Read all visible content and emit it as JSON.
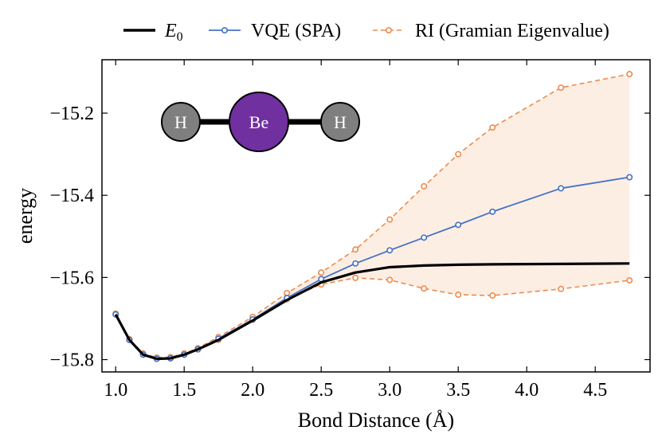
{
  "chart_data": {
    "type": "line",
    "title": "",
    "xlabel": "Bond Distance (Å)",
    "ylabel": "energy",
    "xlim": [
      0.9,
      4.9
    ],
    "ylim": [
      -15.83,
      -15.07
    ],
    "xticks": [
      1.0,
      1.5,
      2.0,
      2.5,
      3.0,
      3.5,
      4.0,
      4.5
    ],
    "xtick_labels": [
      "1.0",
      "1.5",
      "2.0",
      "2.5",
      "3.0",
      "3.5",
      "4.0",
      "4.5"
    ],
    "yticks": [
      -15.8,
      -15.6,
      -15.4,
      -15.2
    ],
    "ytick_labels": [
      "−15.8",
      "−15.6",
      "−15.4",
      "−15.2"
    ],
    "grid": false,
    "legend_position": "top",
    "x": [
      1.0,
      1.1,
      1.2,
      1.3,
      1.4,
      1.5,
      1.6,
      1.75,
      2.0,
      2.25,
      2.5,
      2.75,
      3.0,
      3.25,
      3.5,
      3.75,
      4.25,
      4.75
    ],
    "series": [
      {
        "name": "E",
        "name_subscript": "0",
        "color": "#000000",
        "style": "solid",
        "markers": false,
        "values": [
          -15.69,
          -15.752,
          -15.788,
          -15.798,
          -15.797,
          -15.788,
          -15.775,
          -15.752,
          -15.705,
          -15.655,
          -15.612,
          -15.588,
          -15.575,
          -15.571,
          -15.569,
          -15.568,
          -15.567,
          -15.566
        ]
      },
      {
        "name": "VQE (SPA)",
        "color": "#4472c4",
        "style": "solid",
        "markers": true,
        "values": [
          -15.69,
          -15.752,
          -15.788,
          -15.798,
          -15.797,
          -15.788,
          -15.775,
          -15.749,
          -15.702,
          -15.65,
          -15.604,
          -15.566,
          -15.534,
          -15.503,
          -15.472,
          -15.44,
          -15.383,
          -15.356
        ]
      },
      {
        "name": "RI (Gramian Eigenvalue)",
        "color": "#ed8b4d",
        "style": "dashed",
        "markers": true,
        "band_fill": "#fdeee4",
        "upper": [
          -15.688,
          -15.75,
          -15.785,
          -15.795,
          -15.794,
          -15.785,
          -15.772,
          -15.745,
          -15.696,
          -15.638,
          -15.588,
          -15.532,
          -15.459,
          -15.378,
          -15.3,
          -15.235,
          -15.138,
          -15.105
        ],
        "lower": [
          -15.69,
          -15.752,
          -15.788,
          -15.798,
          -15.797,
          -15.788,
          -15.775,
          -15.752,
          -15.703,
          -15.653,
          -15.617,
          -15.601,
          -15.606,
          -15.627,
          -15.642,
          -15.644,
          -15.628,
          -15.607
        ]
      }
    ],
    "annotation": {
      "molecule": [
        {
          "label": "H",
          "color": "#7f7f7f"
        },
        {
          "label": "Be",
          "color": "#7030a0"
        },
        {
          "label": "H",
          "color": "#7f7f7f"
        }
      ]
    }
  }
}
